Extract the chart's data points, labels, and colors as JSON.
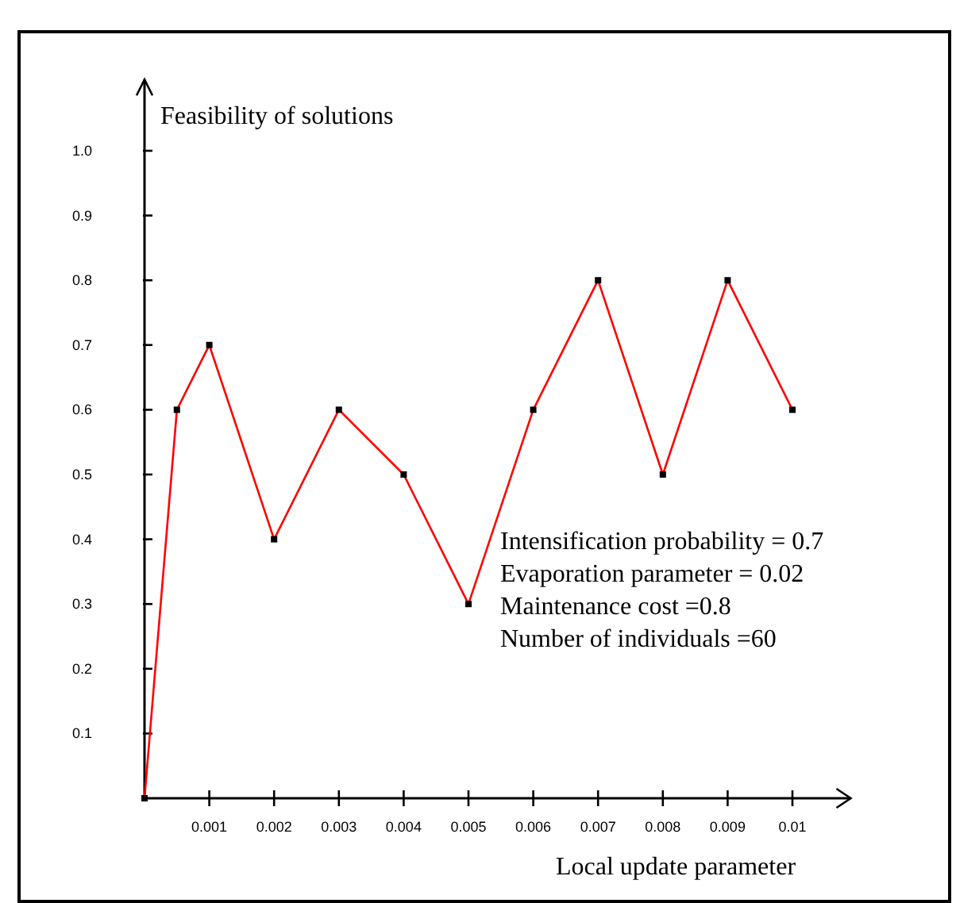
{
  "chart_data": {
    "type": "line",
    "xlabel": "Local update parameter",
    "ylabel": "Feasibility of solutions",
    "x": [
      0,
      0.0005,
      0.001,
      0.002,
      0.003,
      0.004,
      0.005,
      0.006,
      0.007,
      0.008,
      0.009,
      0.01
    ],
    "series": [
      {
        "color": "#ff0000",
        "values": [
          0,
          0.6,
          0.7,
          0.4,
          0.6,
          0.5,
          0.3,
          0.6,
          0.8,
          0.5,
          0.8,
          0.6
        ]
      }
    ],
    "xlim": [
      0,
      0.0109
    ],
    "ylim": [
      0,
      1.11
    ],
    "xticks": [
      0.001,
      0.002,
      0.003,
      0.004,
      0.005,
      0.006,
      0.007,
      0.008,
      0.009,
      0.01
    ],
    "yticks": [
      {
        "value": 0.1,
        "label": "0.1"
      },
      {
        "value": 0.2,
        "label": "0.2"
      },
      {
        "value": 0.3,
        "label": "0.3"
      },
      {
        "value": 0.4,
        "label": "0.4"
      },
      {
        "value": 0.5,
        "label": "0.5"
      },
      {
        "value": 0.6,
        "label": "0.6"
      },
      {
        "value": 0.7,
        "label": "0.7"
      },
      {
        "value": 0.8,
        "label": "0.8"
      },
      {
        "value": 0.9,
        "label": "0.9"
      },
      {
        "value": 1.0,
        "label": "1.0"
      }
    ],
    "marker": "square",
    "annotations": [
      "Intensification probability  = 0.7",
      "Evaporation parameter  = 0.02",
      "Maintenance cost =0.8",
      "Number of individuals =60"
    ]
  }
}
